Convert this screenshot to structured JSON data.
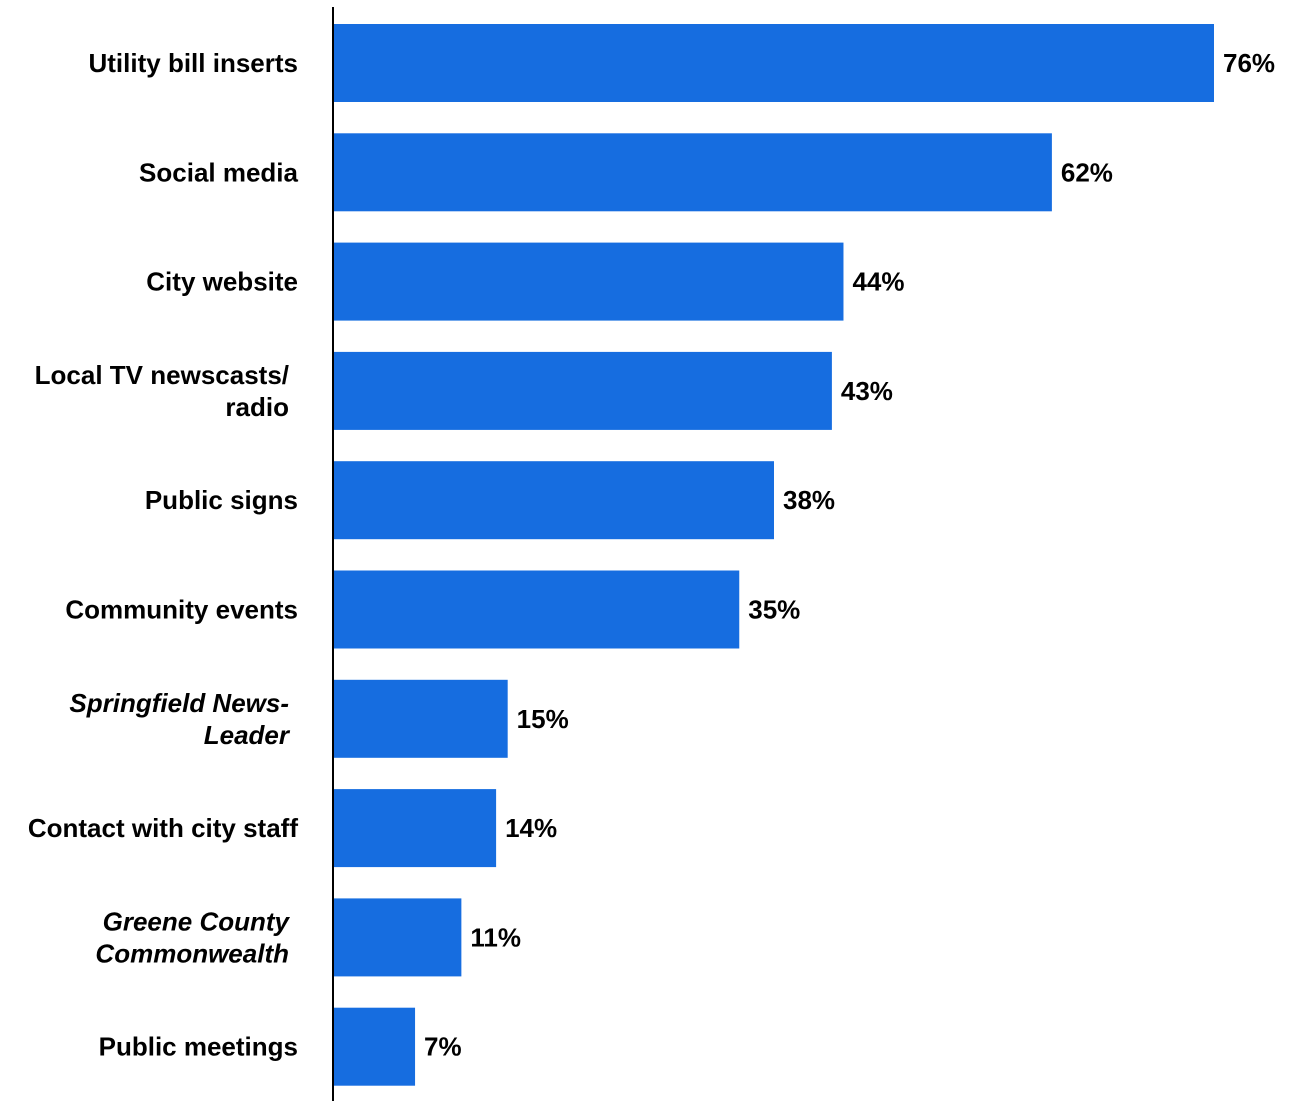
{
  "chart_data": {
    "type": "bar",
    "orientation": "horizontal",
    "categories": [
      "Utility bill inserts",
      "Social media",
      "City website",
      "Local TV newscasts/ radio",
      "Public signs",
      "Community events",
      "Springfield News-Leader",
      "Contact with city staff",
      "Greene County Commonwealth",
      "Public meetings"
    ],
    "category_lines": [
      [
        "Utility bill inserts"
      ],
      [
        "Social media"
      ],
      [
        "City website"
      ],
      [
        "Local TV newscasts/",
        "radio"
      ],
      [
        "Public signs"
      ],
      [
        "Community events"
      ],
      [
        "Springfield News-",
        "Leader"
      ],
      [
        "Contact with city staff"
      ],
      [
        "Greene County",
        "Commonwealth"
      ],
      [
        "Public meetings"
      ]
    ],
    "italic": [
      false,
      false,
      false,
      false,
      false,
      false,
      true,
      false,
      true,
      false
    ],
    "values": [
      76,
      62,
      44,
      43,
      38,
      35,
      15,
      14,
      11,
      7
    ],
    "value_labels": [
      "76%",
      "62%",
      "44%",
      "43%",
      "38%",
      "35%",
      "15%",
      "14%",
      "11%",
      "7%"
    ],
    "unit": "%",
    "xlim": [
      0,
      76
    ],
    "grid": false,
    "legend": false,
    "bar_color": "#166de0",
    "title": "",
    "xlabel": "",
    "ylabel": ""
  }
}
